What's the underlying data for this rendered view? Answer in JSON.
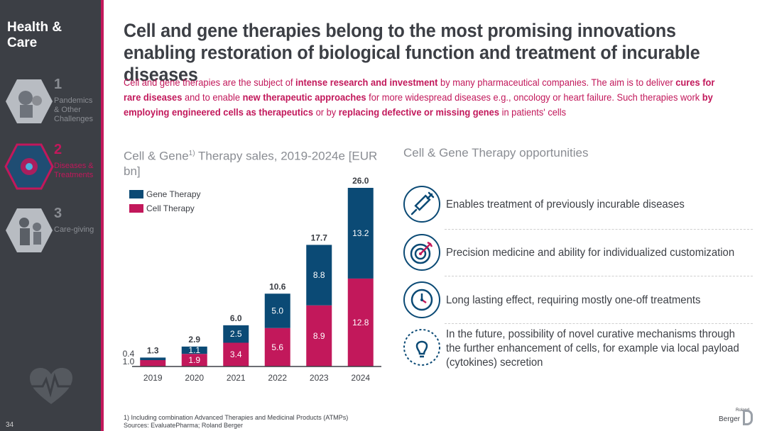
{
  "sidebar": {
    "title": "Health & Care",
    "items": [
      {
        "num": "1",
        "label": "Pandemics & Other Challenges",
        "active": false
      },
      {
        "num": "2",
        "label": "Diseases & Treatments",
        "active": true
      },
      {
        "num": "3",
        "label": "Care-giving",
        "active": false
      }
    ],
    "page_number": "34"
  },
  "headline": "Cell and gene therapies belong to the most promising innovations enabling restoration of biological function and treatment of incurable diseases",
  "intro": {
    "p1": "Cell and gene therapies are the subject of ",
    "b1": "intense research and investment",
    "p2": " by many pharmaceutical companies. The aim is to deliver ",
    "b2": "cures for rare diseases",
    "p3": " and to enable ",
    "b3": "new therapeutic approaches",
    "p4": " for more widespread diseases e.g., oncology or heart failure. Such therapies work ",
    "b4": "by employing engineered cells as therapeutics",
    "p5": " or by ",
    "b5": "replacing defective or missing genes",
    "p6": " in patients' cells"
  },
  "chart_title": {
    "main": "Cell & Gene",
    "sup": "1)",
    "rest": " Therapy sales, 2019-2024e [EUR bn]"
  },
  "opportunities": {
    "title": "Cell & Gene Therapy opportunities",
    "items": [
      {
        "icon": "syringe-icon",
        "text": "Enables treatment of previously incurable diseases"
      },
      {
        "icon": "target-icon",
        "text": "Precision medicine and ability for individualized customization"
      },
      {
        "icon": "clock-icon",
        "text": "Long lasting effect, requiring mostly one-off treatments"
      },
      {
        "icon": "lightbulb-icon",
        "text": "In the future, possibility of novel curative mechanisms through the further enhancement of cells, for example via local payload (cytokines) secretion"
      }
    ]
  },
  "footnote": {
    "line1": "1) Including combination Advanced Therapies and Medicinal Products (ATMPs)",
    "line2": "Sources: EvaluatePharma; Roland Berger"
  },
  "logo": {
    "small": "Roland",
    "text": "Berger"
  },
  "colors": {
    "gene": "#0b4a75",
    "cell": "#c2185b",
    "accent": "#c2185b",
    "sidebar": "#3c3f45"
  },
  "chart_data": {
    "type": "bar",
    "stacked": true,
    "categories": [
      "2019",
      "2020",
      "2021",
      "2022",
      "2023",
      "2024"
    ],
    "series": [
      {
        "name": "Cell Therapy",
        "values": [
          1.0,
          1.9,
          3.4,
          5.6,
          8.9,
          12.8
        ]
      },
      {
        "name": "Gene Therapy",
        "values": [
          0.4,
          1.1,
          2.5,
          5.0,
          8.8,
          13.2
        ]
      }
    ],
    "totals": [
      1.3,
      2.9,
      6.0,
      10.6,
      17.7,
      26.0
    ],
    "legend": [
      "Gene Therapy",
      "Cell Therapy"
    ],
    "legend_position": "top-left",
    "ylim": [
      0,
      26.0
    ],
    "grid": false
  }
}
